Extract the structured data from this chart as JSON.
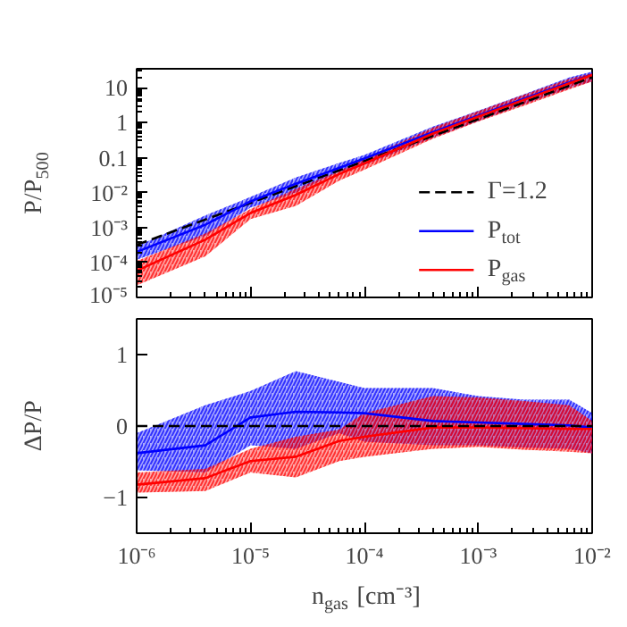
{
  "chart_data": [
    {
      "type": "line",
      "log": "xy",
      "ylabel": "P/P$_{500}$",
      "xlim": [
        1e-06,
        0.01
      ],
      "ylim": [
        1e-05,
        35
      ],
      "xticks": [
        {
          "value": 1e-06,
          "label": null
        },
        {
          "value": 1e-05,
          "label": null
        },
        {
          "value": 0.0001,
          "label": null
        },
        {
          "value": 0.001,
          "label": null
        },
        {
          "value": 0.01,
          "label": null
        }
      ],
      "yticks": [
        {
          "value": 1e-05,
          "label": "10⁻⁵"
        },
        {
          "value": 0.0001,
          "label": "10⁻⁴"
        },
        {
          "value": 0.001,
          "label": "10⁻³"
        },
        {
          "value": 0.01,
          "label": "10⁻²"
        },
        0.1,
        1,
        10
      ],
      "tick_labels": "y",
      "grid": false,
      "legend": "bottom right",
      "series": [
        {
          "name": "Γ=1.2",
          "color": "#000000",
          "line_style": "dashed",
          "x": [
            1e-06,
            0.01
          ],
          "values": [
            0.00032,
            20
          ]
        },
        {
          "name": "P$_{tot}$",
          "color": "#0000ff",
          "x": [
            1e-06,
            4e-06,
            1e-05,
            2.5e-05,
            6e-05,
            0.0001,
            0.0004,
            0.001,
            0.0025,
            0.0063,
            0.01
          ],
          "values": [
            0.0002,
            0.0012,
            0.0056,
            0.018,
            0.051,
            0.094,
            0.54,
            1.6,
            4.8,
            14.2,
            24
          ],
          "lower": [
            0.00012,
            0.00058,
            0.0037,
            0.01,
            0.039,
            0.062,
            0.37,
            1.12,
            3.3,
            9.7,
            15.3
          ],
          "upper": [
            0.00029,
            0.0022,
            0.0075,
            0.027,
            0.07,
            0.12,
            0.77,
            2.2,
            6.4,
            19.6,
            28.8
          ]
        },
        {
          "name": "P$_{gas}$",
          "color": "#ff0000",
          "x": [
            1e-06,
            4e-06,
            1e-05,
            2.5e-05,
            6e-05,
            0.0001,
            0.0004,
            0.001,
            0.0025,
            0.0063,
            0.01
          ],
          "values": [
            5.8e-05,
            0.00045,
            0.0026,
            0.0086,
            0.034,
            0.068,
            0.49,
            1.5,
            4.5,
            13.4,
            23.4
          ],
          "lower": [
            2.2e-05,
            0.00015,
            0.00175,
            0.0042,
            0.022,
            0.045,
            0.35,
            1.09,
            3.05,
            9.0,
            15.1
          ],
          "upper": [
            0.00011,
            0.00067,
            0.0034,
            0.0128,
            0.041,
            0.094,
            0.72,
            2.15,
            6.3,
            18.1,
            26.1
          ]
        }
      ]
    },
    {
      "type": "line",
      "log": "x",
      "ylabel": "ΔP/P",
      "xlabel": "n$_{gas}$ [cm⁻³]",
      "xlim": [
        1e-06,
        0.01
      ],
      "ylim": [
        -1.5,
        1.5
      ],
      "xticks": [
        {
          "value": 1e-06,
          "label": "10⁻⁶"
        },
        {
          "value": 1e-05,
          "label": "10⁻⁵"
        },
        {
          "value": 0.0001,
          "label": "10⁻⁴"
        },
        {
          "value": 0.001,
          "label": "10⁻³"
        },
        {
          "value": 0.01,
          "label": "10⁻²"
        }
      ],
      "yticks": [
        {
          "value": -1,
          "label": "−1"
        },
        0,
        1
      ],
      "grid": false,
      "ref_lines": [
        {
          "axis": "y",
          "value": 0,
          "color": "#000000",
          "line_style": "dashed"
        }
      ],
      "series": [
        {
          "color": "#0000ff",
          "x": [
            1e-06,
            4e-06,
            1e-05,
            2.5e-05,
            6e-05,
            0.0001,
            0.0004,
            0.001,
            0.0025,
            0.0063,
            0.01
          ],
          "values": [
            -0.38,
            -0.27,
            0.12,
            0.2,
            0.19,
            0.18,
            0.07,
            0.05,
            0.03,
            0.01,
            -0.02
          ],
          "lower": [
            -0.62,
            -0.65,
            -0.27,
            -0.32,
            -0.1,
            -0.22,
            -0.27,
            -0.27,
            -0.3,
            -0.32,
            -0.38
          ],
          "upper": [
            -0.1,
            0.29,
            0.49,
            0.77,
            0.62,
            0.53,
            0.53,
            0.42,
            0.37,
            0.37,
            0.18
          ]
        },
        {
          "color": "#ff0000",
          "x": [
            1e-06,
            4e-06,
            1e-05,
            2.5e-05,
            6e-05,
            0.0001,
            0.0004,
            0.001,
            0.0025,
            0.0063,
            0.01
          ],
          "values": [
            -0.82,
            -0.73,
            -0.49,
            -0.43,
            -0.21,
            -0.15,
            -0.02,
            -0.02,
            -0.03,
            -0.04,
            -0.04
          ],
          "lower": [
            -0.93,
            -0.91,
            -0.65,
            -0.72,
            -0.49,
            -0.43,
            -0.32,
            -0.29,
            -0.33,
            -0.36,
            -0.38
          ],
          "upper": [
            -0.65,
            -0.6,
            -0.32,
            -0.15,
            -0.05,
            0.18,
            0.42,
            0.4,
            0.35,
            0.29,
            0.07
          ]
        }
      ]
    }
  ]
}
